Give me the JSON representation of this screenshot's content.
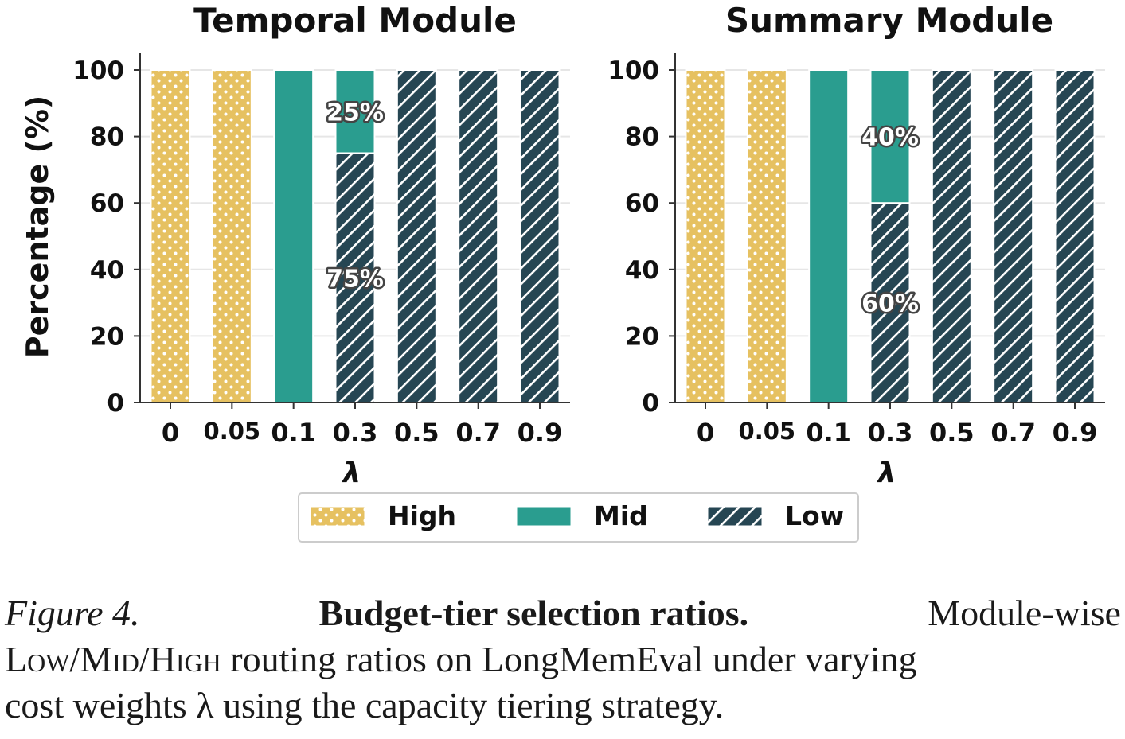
{
  "chart_data": [
    {
      "type": "bar",
      "stacked": true,
      "title": "Temporal Module",
      "xlabel": "λ",
      "ylabel": "Percentage (%)",
      "ylim": [
        0,
        100
      ],
      "yticks": [
        "0",
        "20",
        "40",
        "60",
        "80",
        "100"
      ],
      "categories": [
        "0",
        "0.05",
        "0.1",
        "0.3",
        "0.5",
        "0.7",
        "0.9"
      ],
      "series": [
        {
          "name": "High",
          "values": [
            100,
            100,
            0,
            0,
            0,
            0,
            0
          ]
        },
        {
          "name": "Mid",
          "values": [
            0,
            0,
            100,
            25,
            0,
            0,
            0
          ]
        },
        {
          "name": "Low",
          "values": [
            0,
            0,
            0,
            75,
            100,
            100,
            100
          ]
        }
      ],
      "annotations": [
        {
          "category": "0.3",
          "series": "Mid",
          "text": "25%"
        },
        {
          "category": "0.3",
          "series": "Low",
          "text": "75%"
        }
      ]
    },
    {
      "type": "bar",
      "stacked": true,
      "title": "Summary Module",
      "xlabel": "λ",
      "ylabel": "",
      "ylim": [
        0,
        100
      ],
      "yticks": [
        "0",
        "20",
        "40",
        "60",
        "80",
        "100"
      ],
      "categories": [
        "0",
        "0.05",
        "0.1",
        "0.3",
        "0.5",
        "0.7",
        "0.9"
      ],
      "series": [
        {
          "name": "High",
          "values": [
            100,
            100,
            0,
            0,
            0,
            0,
            0
          ]
        },
        {
          "name": "Mid",
          "values": [
            0,
            0,
            100,
            40,
            0,
            0,
            0
          ]
        },
        {
          "name": "Low",
          "values": [
            0,
            0,
            0,
            60,
            100,
            100,
            100
          ]
        }
      ],
      "annotations": [
        {
          "category": "0.3",
          "series": "Mid",
          "text": "40%"
        },
        {
          "category": "0.3",
          "series": "Low",
          "text": "60%"
        }
      ]
    }
  ],
  "legend": {
    "items": [
      {
        "name": "High",
        "color": "#e6c161",
        "pattern": "dots"
      },
      {
        "name": "Mid",
        "color": "#2a9d8f",
        "pattern": "solid"
      },
      {
        "name": "Low",
        "color": "#264653",
        "pattern": "hatch"
      }
    ]
  },
  "colors": {
    "high": "#e6c161",
    "mid": "#2a9d8f",
    "low": "#264653",
    "grid": "#e6e6e6",
    "axis": "#333333"
  },
  "caption": {
    "label": "Figure 4.",
    "bold": "Budget-tier selection ratios.",
    "text_end_line1": "Module-wise",
    "sc_low": "Low",
    "sc_mid": "Mid",
    "sc_high": "High",
    "line2_rest": "routing ratios on LongMemEval under varying",
    "line3": "cost weights λ using the capacity tiering strategy."
  }
}
